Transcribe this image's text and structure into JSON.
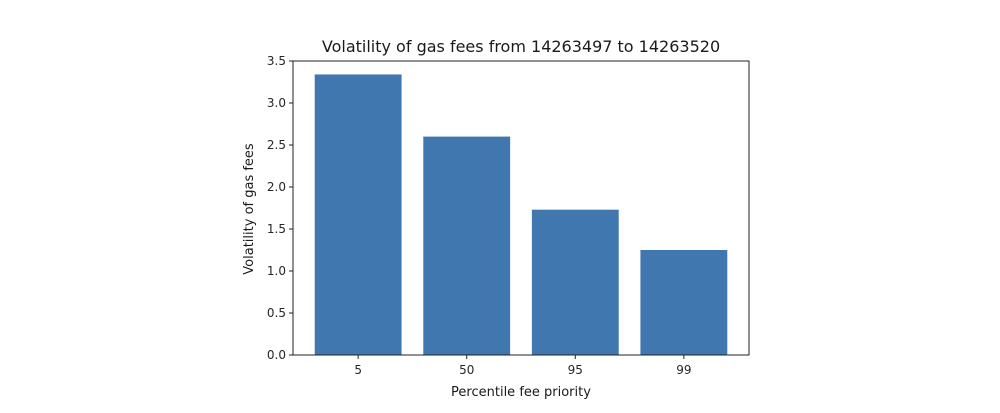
{
  "chart_data": {
    "type": "bar",
    "title": "Volatility of gas fees from 14263497 to 14263520",
    "xlabel": "Percentile fee priority",
    "ylabel": "Volatility of gas fees",
    "categories": [
      "5",
      "50",
      "95",
      "99"
    ],
    "values": [
      3.34,
      2.6,
      1.73,
      1.25
    ],
    "ylim": [
      0,
      3.5
    ],
    "yticks": [
      "0.0",
      "0.5",
      "1.0",
      "1.5",
      "2.0",
      "2.5",
      "3.0",
      "3.5"
    ],
    "grid": false,
    "bar_color": "#4077af"
  }
}
